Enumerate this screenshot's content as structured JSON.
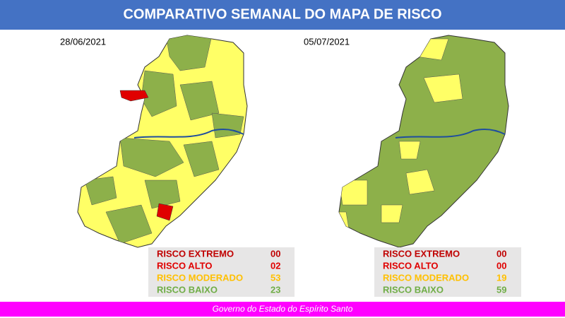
{
  "header": {
    "title": "COMPARATIVO SEMANAL DO MAPA DE RISCO"
  },
  "maps": [
    {
      "date": "28/06/2021",
      "legend": [
        {
          "label": "RISCO EXTREMO",
          "count": "00"
        },
        {
          "label": "RISCO ALTO",
          "count": "02"
        },
        {
          "label": "RISCO MODERADO",
          "count": "53"
        },
        {
          "label": "RISCO BAIXO",
          "count": "23"
        }
      ]
    },
    {
      "date": "05/07/2021",
      "legend": [
        {
          "label": "RISCO EXTREMO",
          "count": "00"
        },
        {
          "label": "RISCO ALTO",
          "count": "00"
        },
        {
          "label": "RISCO MODERADO",
          "count": "19"
        },
        {
          "label": "RISCO BAIXO",
          "count": "59"
        }
      ]
    }
  ],
  "footer": {
    "text": "Governo do Estado do Espírito Santo"
  }
}
